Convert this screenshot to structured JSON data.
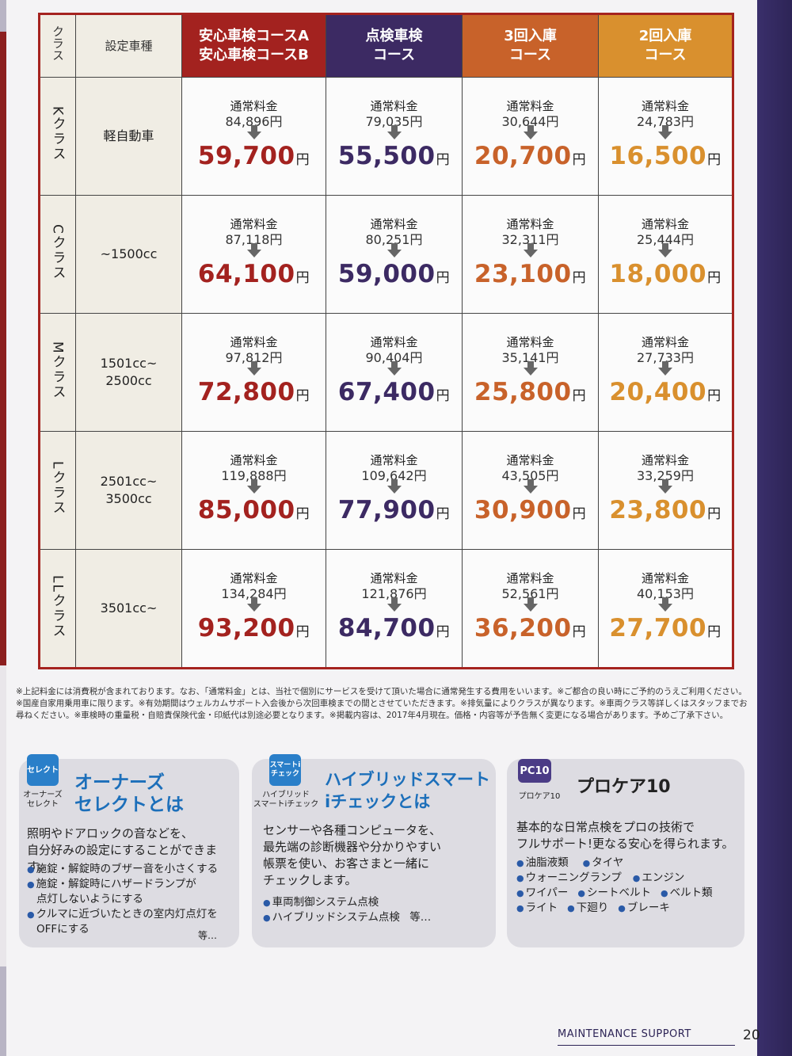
{
  "table": {
    "header": {
      "class": "クラス",
      "type": "設定車種",
      "course_a_line1": "安心車検コースA",
      "course_a_line2": "安心車検コースB",
      "course_b_line1": "点検車検",
      "course_b_line2": "コース",
      "course_c_line1": "3回入庫",
      "course_c_line2": "コース",
      "course_d_line1": "2回入庫",
      "course_d_line2": "コース"
    },
    "regular_label": "通常料金",
    "yen": "円",
    "rows": [
      {
        "class": "Kクラス",
        "type1": "軽自動車",
        "type2": "",
        "a_regular": "84,896円",
        "a_price": "59,700",
        "b_regular": "79,035円",
        "b_price": "55,500",
        "c_regular": "30,644円",
        "c_price": "20,700",
        "d_regular": "24,783円",
        "d_price": "16,500"
      },
      {
        "class": "Cクラス",
        "type1": "~1500cc",
        "type2": "",
        "a_regular": "87,118円",
        "a_price": "64,100",
        "b_regular": "80,251円",
        "b_price": "59,000",
        "c_regular": "32,311円",
        "c_price": "23,100",
        "d_regular": "25,444円",
        "d_price": "18,000"
      },
      {
        "class": "Mクラス",
        "type1": "1501cc~",
        "type2": "2500cc",
        "a_regular": "97,812円",
        "a_price": "72,800",
        "b_regular": "90,404円",
        "b_price": "67,400",
        "c_regular": "35,141円",
        "c_price": "25,800",
        "d_regular": "27,733円",
        "d_price": "20,400"
      },
      {
        "class": "Lクラス",
        "type1": "2501cc~",
        "type2": "3500cc",
        "a_regular": "119,888円",
        "a_price": "85,000",
        "b_regular": "109,642円",
        "b_price": "77,900",
        "c_regular": "43,505円",
        "c_price": "30,900",
        "d_regular": "33,259円",
        "d_price": "23,800"
      },
      {
        "class": "LLクラス",
        "type1": "3501cc~",
        "type2": "",
        "a_regular": "134,284円",
        "a_price": "93,200",
        "b_regular": "121,876円",
        "b_price": "84,700",
        "c_regular": "52,561円",
        "c_price": "36,200",
        "d_regular": "40,153円",
        "d_price": "27,700"
      }
    ]
  },
  "notes": "※上記料金には消費税が含まれております。なお、「通常料金」とは、当社で個別にサービスを受けて頂いた場合に通常発生する費用をいいます。※ご都合の良い時にご予約のうえご利用ください。※国産自家用乗用車に限ります。※有効期間はウェルカムサポート入会後から次回車検までの間とさせていただきます。※排気量によりクラスが異なります。※車両クラス等詳しくはスタッフまでお尋ねください。※車検時の重量税・自賠責保険代金・印紙代は別途必要となります。※掲載内容は、2017年4月現在。価格・内容等が予告無く変更になる場合があります。予めご了承下さい。",
  "boxes": {
    "owners": {
      "badge": "セレクト",
      "caption1": "オーナーズ",
      "caption2": "セレクト",
      "title1": "オーナーズ",
      "title2": "セレクトとは",
      "desc1": "照明やドアロックの音などを、",
      "desc2": "自分好みの設定にすることができます。",
      "bullet1": "施錠・解錠時のブザー音を小さくする",
      "bullet2a": "施錠・解錠時にハザードランプが",
      "bullet2b": "点灯しないようにする",
      "bullet3a": "クルマに近づいたときの室内灯点灯を",
      "bullet3b": "OFFにする",
      "etc": "等…"
    },
    "hybrid": {
      "badge": "スマートi チェック",
      "caption1": "ハイブリッド",
      "caption2": "スマートiチェック",
      "title1": "ハイブリッドスマート",
      "title2": "iチェックとは",
      "desc1": "センサーや各種コンピュータを、",
      "desc2": "最先端の診断機器や分かりやすい",
      "desc3": "帳票を使い、お客さまと一緒に",
      "desc4": "チェックします。",
      "bullet1": "車両制御システム点検",
      "bullet2": "ハイブリッドシステム点検",
      "etc": "等…"
    },
    "procare": {
      "badge": "PC10",
      "caption": "プロケア10",
      "title": "プロケア10",
      "desc1": "基本的な日常点検をプロの技術で",
      "desc2": "フルサポート!更なる安心を得られます。",
      "items_row1": [
        "油脂液類",
        "タイヤ"
      ],
      "items_row2": [
        "ウォーニングランプ",
        "エンジン"
      ],
      "items_row3": [
        "ワイパー",
        "シートベルト",
        "ベルト類"
      ],
      "items_row4": [
        "ライト",
        "下廻り",
        "ブレーキ"
      ]
    }
  },
  "footer": {
    "label": "MAINTENANCE SUPPORT",
    "page": "20"
  },
  "colors": {
    "course_a": "#a3221f",
    "course_b": "#3c2a63",
    "course_c": "#c8622a",
    "course_d": "#d9902e"
  }
}
